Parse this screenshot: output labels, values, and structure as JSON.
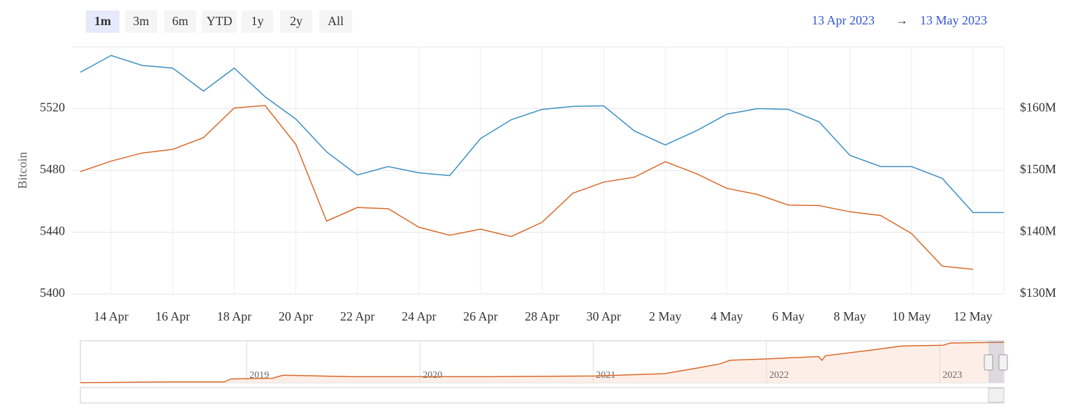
{
  "range_selector": {
    "buttons": [
      "1m",
      "3m",
      "6m",
      "YTD",
      "1y",
      "2y",
      "All"
    ],
    "selected": 0,
    "from": "13 Apr 2023",
    "arrow": "→",
    "to": "13 May 2023"
  },
  "chart_data": {
    "type": "line",
    "y_label": "Bitcoin",
    "grid": true,
    "x": [
      "2023-04-13",
      "2023-04-14",
      "2023-04-15",
      "2023-04-16",
      "2023-04-17",
      "2023-04-18",
      "2023-04-19",
      "2023-04-20",
      "2023-04-21",
      "2023-04-22",
      "2023-04-23",
      "2023-04-24",
      "2023-04-25",
      "2023-04-26",
      "2023-04-27",
      "2023-04-28",
      "2023-04-29",
      "2023-04-30",
      "2023-05-01",
      "2023-05-02",
      "2023-05-03",
      "2023-05-04",
      "2023-05-05",
      "2023-05-06",
      "2023-05-07",
      "2023-05-08",
      "2023-05-09",
      "2023-05-10",
      "2023-05-11",
      "2023-05-12",
      "2023-05-13"
    ],
    "xlim": [
      "2023-04-13",
      "2023-05-13"
    ],
    "xticks": [
      {
        "value": "2023-04-14",
        "label": "14 Apr"
      },
      {
        "value": "2023-04-16",
        "label": "16 Apr"
      },
      {
        "value": "2023-04-18",
        "label": "18 Apr"
      },
      {
        "value": "2023-04-20",
        "label": "20 Apr"
      },
      {
        "value": "2023-04-22",
        "label": "22 Apr"
      },
      {
        "value": "2023-04-24",
        "label": "24 Apr"
      },
      {
        "value": "2023-04-26",
        "label": "26 Apr"
      },
      {
        "value": "2023-04-28",
        "label": "28 Apr"
      },
      {
        "value": "2023-04-30",
        "label": "30 Apr"
      },
      {
        "value": "2023-05-02",
        "label": "2 May"
      },
      {
        "value": "2023-05-04",
        "label": "4 May"
      },
      {
        "value": "2023-05-06",
        "label": "6 May"
      },
      {
        "value": "2023-05-08",
        "label": "8 May"
      },
      {
        "value": "2023-05-10",
        "label": "10 May"
      },
      {
        "value": "2023-05-12",
        "label": "12 May"
      }
    ],
    "ylim": [
      5400,
      5560
    ],
    "yticks": [
      5400,
      5440,
      5480,
      5520
    ],
    "y2lim": [
      130,
      170
    ],
    "y2ticks": [
      {
        "value": 130,
        "label": "$130M"
      },
      {
        "value": 140,
        "label": "$140M"
      },
      {
        "value": 150,
        "label": "$150M"
      },
      {
        "value": 160,
        "label": "$160M"
      }
    ],
    "series": [
      {
        "color": "#3a8fc4",
        "values": [
          5543.5,
          5554.4,
          5548,
          5546.2,
          5531.3,
          5546.2,
          5527.7,
          5513.2,
          5492,
          5477,
          5482.5,
          5478.4,
          5476.6,
          5500.6,
          5512.8,
          5519.5,
          5521.4,
          5521.8,
          5505.5,
          5496.5,
          5505.5,
          5516.4,
          5520,
          5519.5,
          5511.4,
          5489.7,
          5482.5,
          5482.5,
          5474.8,
          5452.7,
          5452.7
        ]
      },
      {
        "color": "#d9692a",
        "axis": "y2",
        "values": [
          149.8,
          151.5,
          152.8,
          153.4,
          155.3,
          160.1,
          160.5,
          154.2,
          141.8,
          144,
          143.8,
          140.8,
          139.5,
          140.5,
          139.3,
          141.6,
          146.3,
          148.1,
          148.9,
          151.4,
          149.5,
          147.1,
          146.1,
          144.4,
          144.3,
          143.3,
          142.7,
          139.8,
          134.5,
          134.0,
          null
        ]
      }
    ]
  },
  "navigator": {
    "type": "area",
    "color": "#d9692a",
    "x": [
      2018.04,
      2018.55,
      2018.87,
      2018.91,
      2019.15,
      2019.21,
      2019.6,
      2020.4,
      2021.01,
      2021.41,
      2021.61,
      2021.73,
      2021.79,
      2022.02,
      2022.3,
      2022.32,
      2022.34,
      2022.62,
      2022.78,
      2023.02,
      2023.06,
      2023.37
    ],
    "values": [
      0,
      1,
      1,
      5,
      6,
      10,
      8,
      8,
      9,
      12,
      20,
      25,
      30,
      32,
      35,
      30,
      36,
      44,
      49,
      50,
      53,
      54
    ],
    "xlim": [
      2018.04,
      2023.37
    ],
    "ylim": [
      0,
      56
    ],
    "xticks": [
      2019,
      2020,
      2021,
      2022,
      2023
    ]
  }
}
